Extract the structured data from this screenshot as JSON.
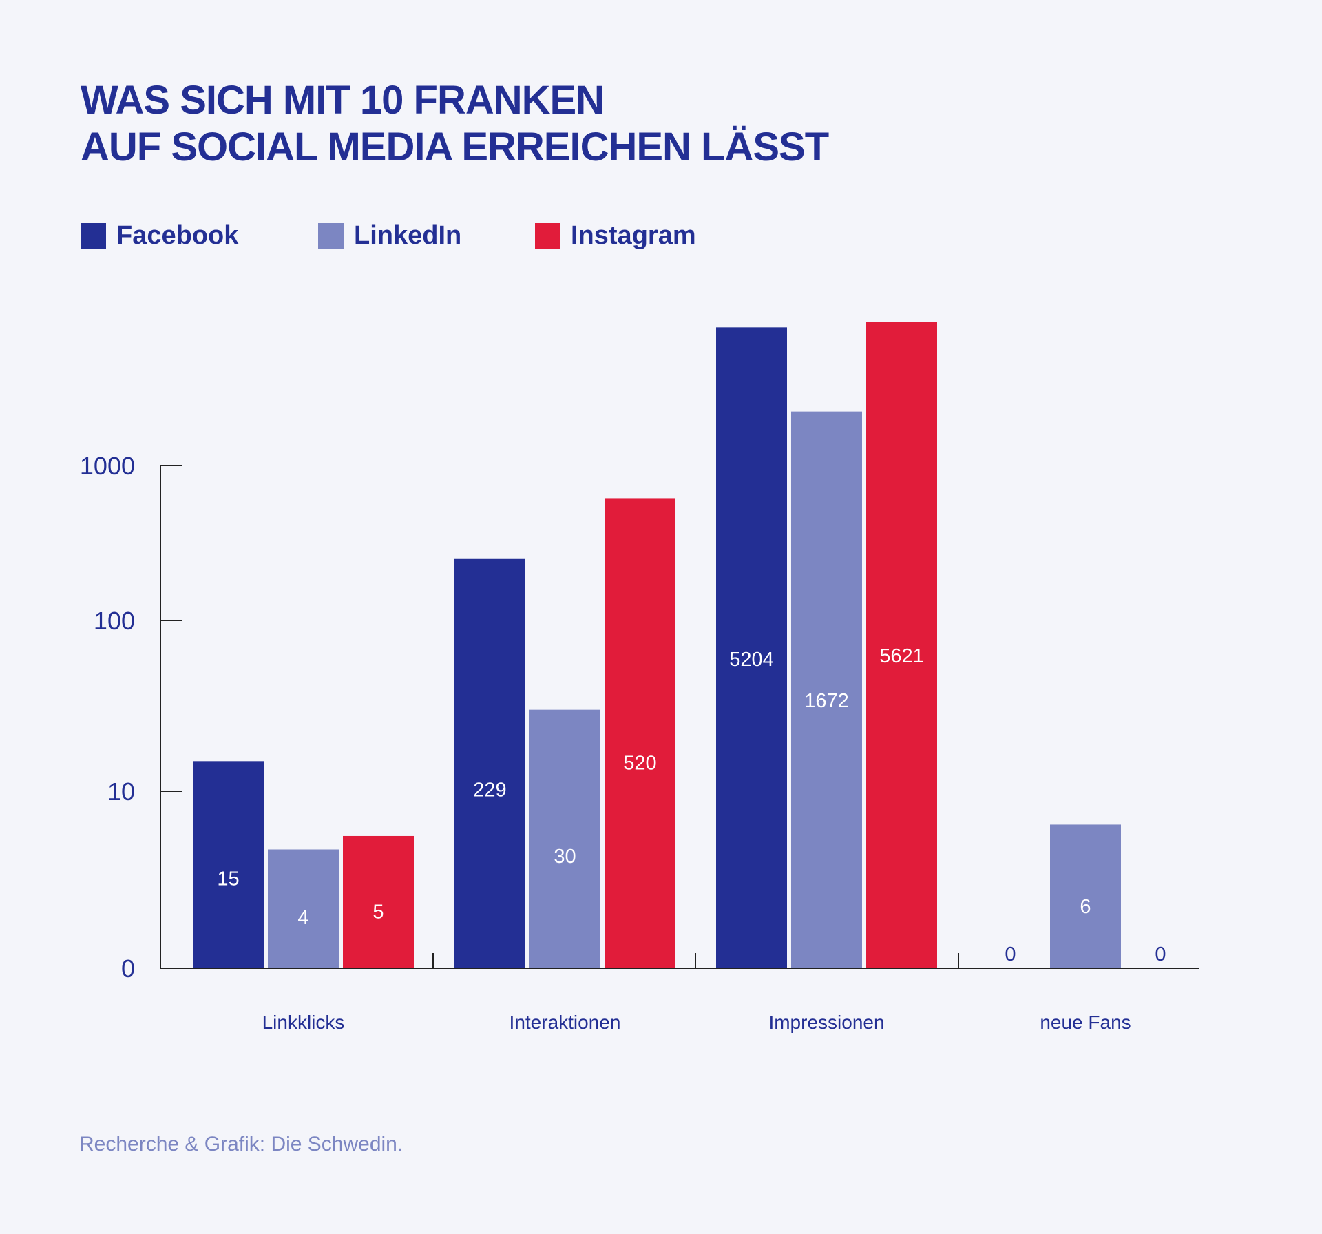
{
  "title_lines": [
    "WAS SICH MIT 10 FRANKEN",
    "AUF SOCIAL MEDIA ERREICHEN LÄSST"
  ],
  "source": "Recherche & Grafik: Die Schwedin.",
  "colors": {
    "facebook": "#232f94",
    "linkedin": "#7c86c2",
    "instagram": "#e11c3a",
    "axis": "#222222",
    "text": "#232f94",
    "background": "#f4f5fa"
  },
  "chart_data": {
    "type": "bar",
    "title": "WAS SICH MIT 10 FRANKEN AUF SOCIAL MEDIA ERREICHEN LÄSST",
    "categories": [
      "Linkklicks",
      "Interaktionen",
      "Impressionen",
      "neue Fans"
    ],
    "series": [
      {
        "name": "Facebook",
        "color": "#232f94",
        "values": [
          15,
          229,
          5204,
          0
        ]
      },
      {
        "name": "LinkedIn",
        "color": "#7c86c2",
        "values": [
          4,
          30,
          1672,
          6
        ]
      },
      {
        "name": "Instagram",
        "color": "#e11c3a",
        "values": [
          5,
          520,
          5621,
          0
        ]
      }
    ],
    "y_scale": "log",
    "y_ticks": [
      0,
      10,
      100,
      1000
    ],
    "y_tick_labels": [
      "0",
      "10",
      "100",
      "1000"
    ],
    "xlabel": "",
    "ylabel": "",
    "grid": false,
    "legend_position": "top-left",
    "data_labels": true
  }
}
